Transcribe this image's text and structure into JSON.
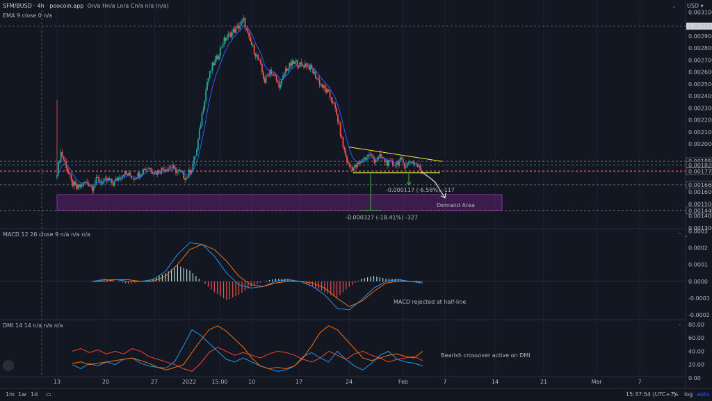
{
  "header": {
    "symbol": "SFM/BUSD",
    "interval": "4h",
    "source": "poocoin.app",
    "ohlc": "On/a Hn/a Ln/a Cn/a n/a (n/a)",
    "ema": "EMA 9 close 0  n/a",
    "macd": "MACD 12 26 close 9  n/a n/a n/a",
    "dmi": "DMI 14 14  n/a n/a n/a",
    "currency": "USD"
  },
  "colors": {
    "background": "#131722",
    "up": "#26a69a",
    "down": "#ef5350",
    "ema": "#2962ff",
    "macd_line": "#2196f3",
    "signal_line": "#ff6d00",
    "dmi_plus": "#2196f3",
    "dmi_minus": "#f44336",
    "adx": "#ff6d00",
    "trendline": "#ffeb3b",
    "demand_zone": "#9c27b0"
  },
  "status_bar": {
    "timeframes": [
      "1m",
      "1w",
      "1d"
    ],
    "time": "15:37:54 (UTC+7)",
    "percent": "%",
    "log": "log",
    "auto": "auto"
  },
  "chart_data": [
    {
      "type": "candlestick",
      "title": "SFM/BUSD · 4h · poocoin.app",
      "x_ticks": [
        "13",
        "20",
        "27",
        "2022",
        "15:00",
        "10",
        "17",
        "24",
        "Feb",
        "7",
        "14",
        "21",
        "Mar",
        "7"
      ],
      "y_ticks": [
        0.0031,
        0.0029,
        0.0028,
        0.0027,
        0.0026,
        0.0025,
        0.0024,
        0.0023,
        0.0022,
        0.0021,
        0.002,
        0.0016,
        0.0015,
        0.0014,
        0.0013
      ],
      "ylim": [
        0.0013,
        0.00312
      ],
      "price_labels": [
        "0.002983",
        "0.001856",
        "0.001826",
        "0.001776",
        "0.001771",
        "0.001660",
        "0.001446"
      ],
      "current_price": "0.001776",
      "approx_close_path": [
        0.00172,
        0.00193,
        0.00182,
        0.00168,
        0.00163,
        0.00166,
        0.00168,
        0.00164,
        0.00171,
        0.00168,
        0.0017,
        0.00167,
        0.00172,
        0.00176,
        0.00174,
        0.00172,
        0.00175,
        0.0018,
        0.0018,
        0.00176,
        0.00178,
        0.0018,
        0.00181,
        0.00178,
        0.00175,
        0.00172,
        0.0018,
        0.00195,
        0.00225,
        0.00252,
        0.00265,
        0.00273,
        0.00285,
        0.0029,
        0.00294,
        0.00298,
        0.00303,
        0.00287,
        0.00278,
        0.00268,
        0.00252,
        0.00262,
        0.00255,
        0.00248,
        0.00262,
        0.00266,
        0.00268,
        0.00265,
        0.00267,
        0.00262,
        0.00255,
        0.00248,
        0.00243,
        0.00236,
        0.0022,
        0.00198,
        0.00182,
        0.0018,
        0.00183,
        0.00188,
        0.00191,
        0.00187,
        0.00189,
        0.00186,
        0.00183,
        0.00184,
        0.00186,
        0.00182,
        0.00186,
        0.00183,
        0.00177
      ],
      "annotations": {
        "zone_label": "Demand Area",
        "measure_1": "-0.000117 (-6.58%) -117",
        "measure_2": "-0.000327 (-18.41%) -327"
      }
    },
    {
      "type": "line",
      "title": "MACD 12 26 close 9",
      "y_ticks": [
        0.0003,
        0.0002,
        0.0001,
        0.0,
        -0.0001,
        -0.0002
      ],
      "ylim": [
        -0.00022,
        0.00031
      ],
      "series": [
        {
          "name": "MACD",
          "values": [
            0.0,
            1e-05,
            1e-05,
            0.0,
            0.0,
            1e-05,
            6e-05,
            0.00016,
            0.00023,
            0.00022,
            0.00015,
            5e-05,
            -2e-05,
            -4e-05,
            -3e-05,
            0.0,
            1e-05,
            0.0,
            -3e-05,
            -8e-05,
            -0.00016,
            -0.00017,
            -0.00011,
            -4e-05,
            0.0,
            1e-05,
            0.0,
            -1e-05
          ]
        },
        {
          "name": "Signal",
          "values": [
            0.0,
            0.0,
            1e-05,
            1e-05,
            0.0,
            0.0,
            3e-05,
            0.0001,
            0.00019,
            0.00022,
            0.00019,
            0.00012,
            3e-05,
            -2e-05,
            -3e-05,
            -1e-05,
            0.0,
            0.0,
            -1e-05,
            -4e-05,
            -0.0001,
            -0.00015,
            -0.00012,
            -6e-05,
            -1e-05,
            0.0,
            0.0,
            0.0
          ]
        }
      ],
      "annotation": "MACD rejected at half-line"
    },
    {
      "type": "line",
      "title": "DMI 14 14",
      "y_ticks": [
        80.0,
        60.0,
        40.0,
        20.0,
        0.0
      ],
      "ylim": [
        0,
        85
      ],
      "series": [
        {
          "name": "+DI",
          "values": [
            20,
            14,
            22,
            18,
            24,
            20,
            28,
            30,
            22,
            18,
            16,
            15,
            25,
            48,
            72,
            64,
            52,
            40,
            28,
            24,
            30,
            24,
            18,
            14,
            10,
            12,
            18,
            32,
            38,
            30,
            24,
            40,
            28,
            18,
            12,
            22,
            34,
            40,
            28,
            24,
            22,
            18
          ]
        },
        {
          "name": "-DI",
          "values": [
            40,
            44,
            38,
            42,
            36,
            40,
            36,
            44,
            40,
            32,
            28,
            24,
            20,
            14,
            10,
            22,
            38,
            46,
            40,
            34,
            38,
            34,
            30,
            36,
            40,
            38,
            34,
            28,
            24,
            30,
            40,
            34,
            28,
            36,
            40,
            34,
            30,
            24,
            28,
            30,
            32,
            26
          ]
        },
        {
          "name": "ADX",
          "values": [
            22,
            24,
            20,
            22,
            24,
            26,
            28,
            30,
            26,
            22,
            16,
            12,
            16,
            20,
            38,
            56,
            72,
            78,
            70,
            58,
            46,
            30,
            18,
            14,
            16,
            14,
            18,
            30,
            48,
            68,
            78,
            72,
            58,
            44,
            30,
            26,
            30,
            34,
            36,
            32,
            30,
            40
          ]
        }
      ],
      "annotation": "Bearish crossover active on DMI"
    }
  ]
}
